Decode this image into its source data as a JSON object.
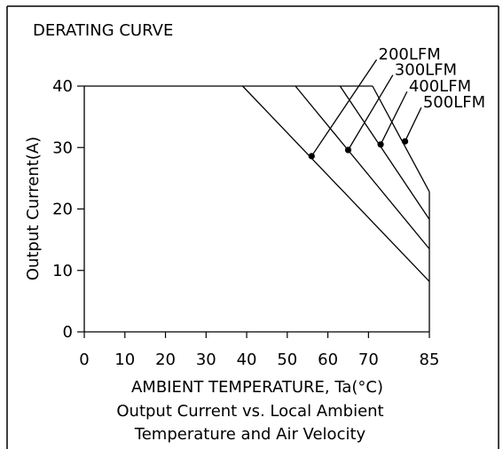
{
  "chart_data": {
    "type": "line",
    "title": "DERATING CURVE",
    "xlabel": "AMBIENT TEMPERATURE, Ta(°C)",
    "ylabel": "Output Current(A)",
    "caption_lines": [
      "Output Current vs. Local Ambient",
      "Temperature and Air Velocity"
    ],
    "x_ticks": [
      0,
      10,
      20,
      30,
      40,
      50,
      60,
      70,
      85
    ],
    "y_ticks": [
      0,
      10,
      20,
      30,
      40
    ],
    "xlim": [
      0,
      85
    ],
    "ylim": [
      0,
      40
    ],
    "grid": false,
    "series": [
      {
        "name": "200LFM",
        "points": [
          [
            39,
            40
          ],
          [
            85,
            8.2
          ]
        ],
        "marker": [
          56,
          28.6
        ],
        "label_anchor": [
          72,
          44.3
        ]
      },
      {
        "name": "300LFM",
        "points": [
          [
            52,
            40
          ],
          [
            85,
            13.5
          ]
        ],
        "marker": [
          65,
          29.6
        ],
        "label_anchor": [
          76,
          41.8
        ]
      },
      {
        "name": "400LFM",
        "points": [
          [
            63,
            40
          ],
          [
            85,
            18.3
          ]
        ],
        "marker": [
          73,
          30.5
        ],
        "label_anchor": [
          79.5,
          39.1
        ]
      },
      {
        "name": "500LFM",
        "points": [
          [
            71,
            40
          ],
          [
            85,
            22.8
          ]
        ],
        "marker": [
          79,
          31
        ],
        "label_anchor": [
          83,
          36.5
        ]
      }
    ]
  }
}
